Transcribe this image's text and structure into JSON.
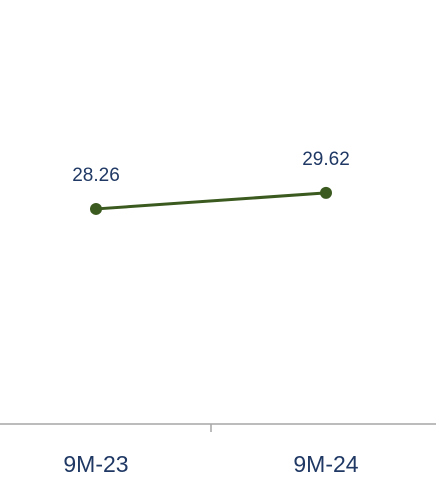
{
  "chart_data": {
    "type": "line",
    "categories": [
      "9M-23",
      "9M-24"
    ],
    "series": [
      {
        "name": null,
        "color": "#3b5a1f",
        "values": [
          28.26,
          29.62
        ]
      }
    ],
    "ylim": [
      10,
      46
    ]
  }
}
